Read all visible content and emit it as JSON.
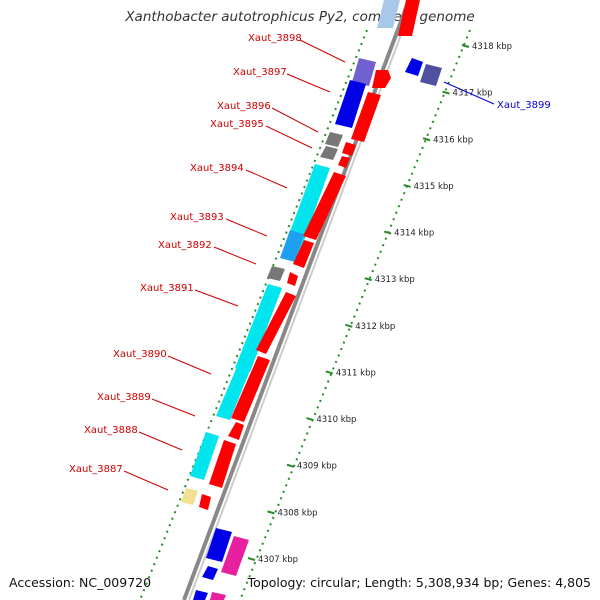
{
  "title": "Xanthobacter autotrophicus Py2, complete genome",
  "footer": {
    "accession": "Accession: NC_009720",
    "topology": "Topology: circular; Length: 5,308,934 bp; Genes: 4,805"
  },
  "colors": {
    "forward_cds": "#ff0000",
    "reverse_cds": "#0000e6",
    "cyan_cds": "#00e5ee",
    "gray_feature": "#777777",
    "backbone": "#999999",
    "tick": "#2a8a2a",
    "label_red": "#cc0000",
    "label_blue": "#0000cc"
  },
  "scale": {
    "unit": "kbp",
    "ticks": [
      {
        "label": "4307 kbp",
        "kbp": 4307
      },
      {
        "label": "4308 kbp",
        "kbp": 4308
      },
      {
        "label": "4309 kbp",
        "kbp": 4309
      },
      {
        "label": "4310 kbp",
        "kbp": 4310
      },
      {
        "label": "4311 kbp",
        "kbp": 4311
      },
      {
        "label": "4312 kbp",
        "kbp": 4312
      },
      {
        "label": "4313 kbp",
        "kbp": 4313
      },
      {
        "label": "4314 kbp",
        "kbp": 4314
      },
      {
        "label": "4315 kbp",
        "kbp": 4315
      },
      {
        "label": "4316 kbp",
        "kbp": 4316
      },
      {
        "label": "4317 kbp",
        "kbp": 4317
      },
      {
        "label": "4318 kbp",
        "kbp": 4318
      }
    ]
  },
  "genes": [
    {
      "name": "Xaut_3887",
      "kbp": 4308.6,
      "lane": "outer",
      "color": "#f0e090",
      "label_color": "red"
    },
    {
      "name": "Xaut_3888",
      "kbp": 4309.4,
      "lane": "outer",
      "color": "#00e5ee",
      "label_color": "red"
    },
    {
      "name": "Xaut_3889",
      "kbp": 4310.2,
      "lane": "outer",
      "color": "#00e5ee",
      "label_color": "red"
    },
    {
      "name": "Xaut_3890",
      "kbp": 4310.9,
      "lane": "outer",
      "color": "#00e5ee",
      "label_color": "red"
    },
    {
      "name": "Xaut_3891",
      "kbp": 4312.3,
      "lane": "outer",
      "color": "#00e5ee",
      "label_color": "red"
    },
    {
      "name": "Xaut_3892",
      "kbp": 4313.3,
      "lane": "outer",
      "color": "#777777",
      "label_color": "red"
    },
    {
      "name": "Xaut_3893",
      "kbp": 4313.9,
      "lane": "outer",
      "color": "#1ea0f0",
      "label_color": "red"
    },
    {
      "name": "Xaut_3894",
      "kbp": 4315.0,
      "lane": "outer",
      "color": "#00e5ee",
      "label_color": "red"
    },
    {
      "name": "Xaut_3895",
      "kbp": 4316.1,
      "lane": "outer",
      "color": "#777777",
      "label_color": "red"
    },
    {
      "name": "Xaut_3896",
      "kbp": 4316.4,
      "lane": "outer",
      "color": "#777777",
      "label_color": "red"
    },
    {
      "name": "Xaut_3897",
      "kbp": 4317.2,
      "lane": "outer",
      "color": "#0000e6",
      "label_color": "red"
    },
    {
      "name": "Xaut_3898",
      "kbp": 4317.8,
      "lane": "outer",
      "color": "#7060d0",
      "label_color": "red"
    },
    {
      "name": "Xaut_3899",
      "kbp": 4317.5,
      "lane": "right",
      "color": "#5050a0",
      "label_color": "blue"
    }
  ]
}
